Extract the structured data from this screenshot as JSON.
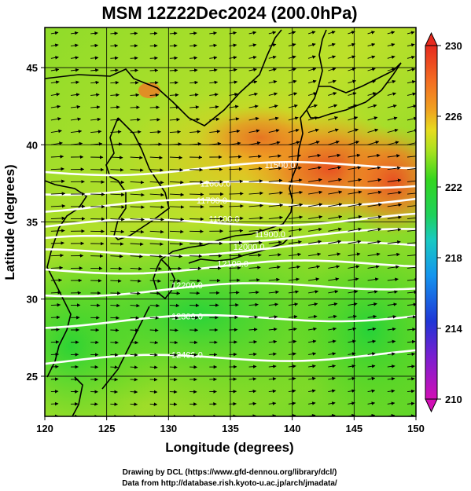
{
  "title": "MSM 12Z22Dec2024 (200.0hPa)",
  "map": {
    "xlabel": "Longitude (degrees)",
    "ylabel": "Latitude  (degrees)",
    "lon_range": [
      120,
      150
    ],
    "lat_range": [
      22.4,
      47.6
    ],
    "lon_ticks": [
      "120",
      "125",
      "130",
      "135",
      "140",
      "145",
      "150"
    ],
    "lat_ticks": [
      "25",
      "30",
      "35",
      "40",
      "45"
    ],
    "shaded_field_units_range": [
      210,
      230
    ],
    "vectors": "eastward wind vectors (westerly jet)"
  },
  "contours": [
    {
      "label": "11500.0",
      "lon": 139.0,
      "lat": 38.5
    },
    {
      "label": "11600.0",
      "lon": 133.8,
      "lat": 37.3
    },
    {
      "label": "11700.0",
      "lon": 133.5,
      "lat": 36.2
    },
    {
      "label": "11800.0",
      "lon": 134.5,
      "lat": 35.0
    },
    {
      "label": "11900.0",
      "lon": 138.2,
      "lat": 34.0
    },
    {
      "label": "12000.0",
      "lon": 136.5,
      "lat": 33.2
    },
    {
      "label": "12100.0",
      "lon": 135.2,
      "lat": 32.1
    },
    {
      "label": "12200.0",
      "lon": 131.5,
      "lat": 30.7
    },
    {
      "label": "12300.0",
      "lon": 131.5,
      "lat": 28.7
    },
    {
      "label": "12400.0",
      "lon": 131.5,
      "lat": 26.2
    }
  ],
  "colorbar": {
    "ticks": [
      "230",
      "226",
      "222",
      "218",
      "214",
      "210"
    ],
    "min": 210,
    "max": 230,
    "colors": [
      "#d10fb5",
      "#7a1fd0",
      "#1f36d6",
      "#1495ee",
      "#19c9c2",
      "#1ed15c",
      "#33d61f",
      "#a6e11f",
      "#e6dc1e",
      "#f0a020",
      "#f36d22",
      "#e62a1e"
    ]
  },
  "credits": {
    "line1": "Drawing by DCL (https://www.gfd-dennou.org/library/dcl/)",
    "line2": "Data from http://database.rish.kyoto-u.ac.jp/arch/jmadata/"
  }
}
